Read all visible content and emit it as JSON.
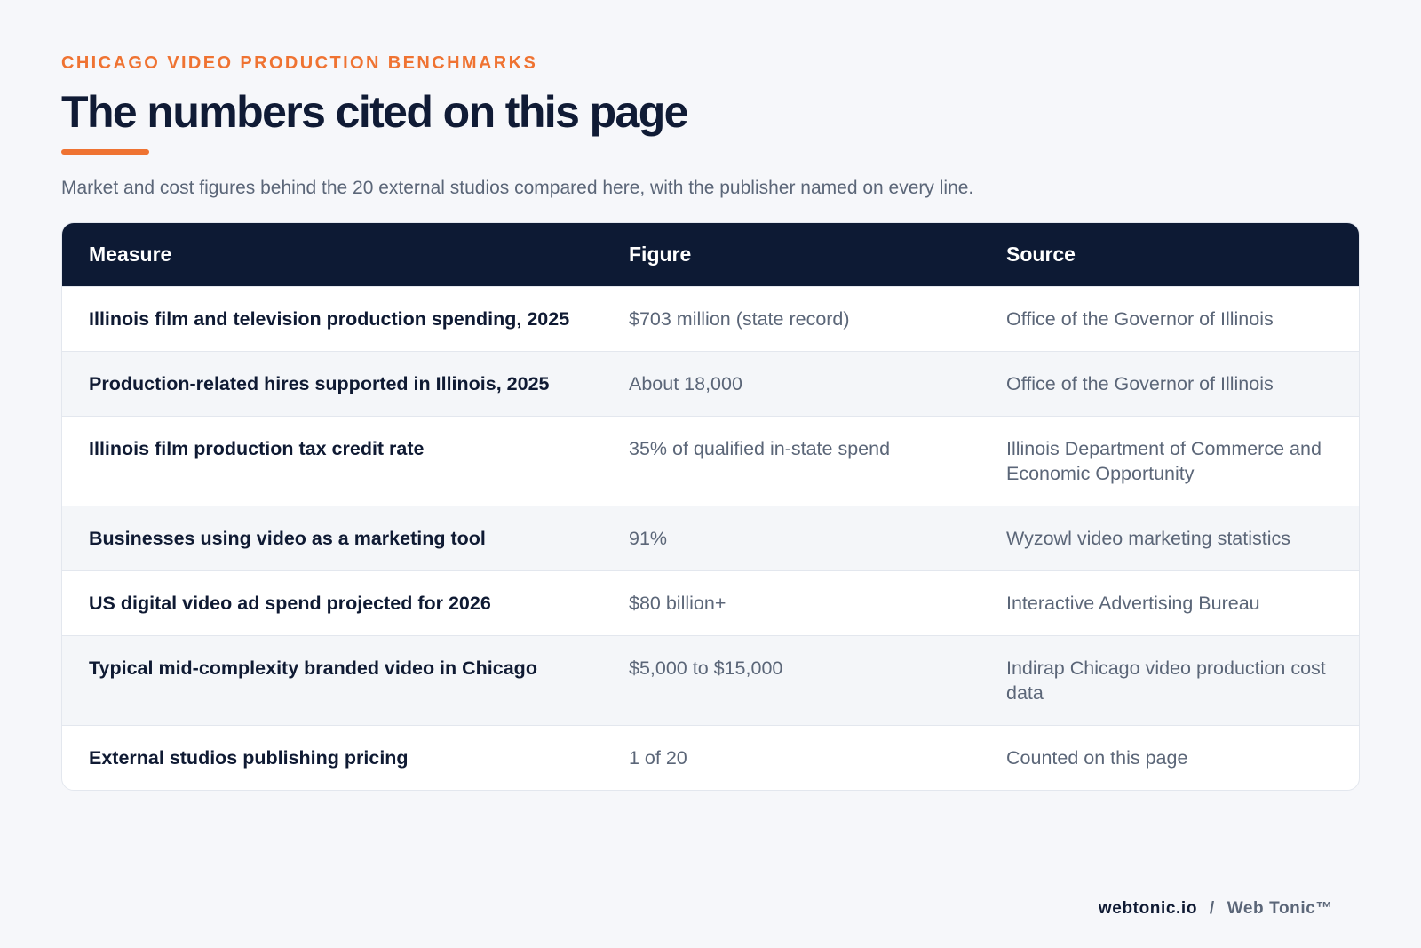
{
  "header": {
    "eyebrow": "CHICAGO VIDEO PRODUCTION BENCHMARKS",
    "title": "The numbers cited on this page",
    "subtitle": "Market and cost figures behind the 20 external studios compared here, with the publisher named on every line."
  },
  "table": {
    "columns": [
      "Measure",
      "Figure",
      "Source"
    ],
    "rows": [
      {
        "measure": "Illinois film and television production spending, 2025",
        "figure": "$703 million (state record)",
        "source": "Office of the Governor of Illinois"
      },
      {
        "measure": "Production-related hires supported in Illinois, 2025",
        "figure": "About 18,000",
        "source": "Office of the Governor of Illinois"
      },
      {
        "measure": "Illinois film production tax credit rate",
        "figure": "35% of qualified in-state spend",
        "source": "Illinois Department of Commerce and Economic Opportunity"
      },
      {
        "measure": "Businesses using video as a marketing tool",
        "figure": "91%",
        "source": "Wyzowl video marketing statistics"
      },
      {
        "measure": "US digital video ad spend projected for 2026",
        "figure": "$80 billion+",
        "source": "Interactive Advertising Bureau"
      },
      {
        "measure": "Typical mid-complexity branded video in Chicago",
        "figure": "$5,000 to $15,000",
        "source": "Indirap Chicago video production cost data"
      },
      {
        "measure": "External studios publishing pricing",
        "figure": "1 of 20",
        "source": "Counted on this page"
      }
    ]
  },
  "footer": {
    "domain": "webtonic.io",
    "separator": "/",
    "brand": "Web Tonic™"
  },
  "colors": {
    "accent": "#ef7332",
    "header_bg": "#0d1a34",
    "page_bg": "#f6f7fa"
  }
}
